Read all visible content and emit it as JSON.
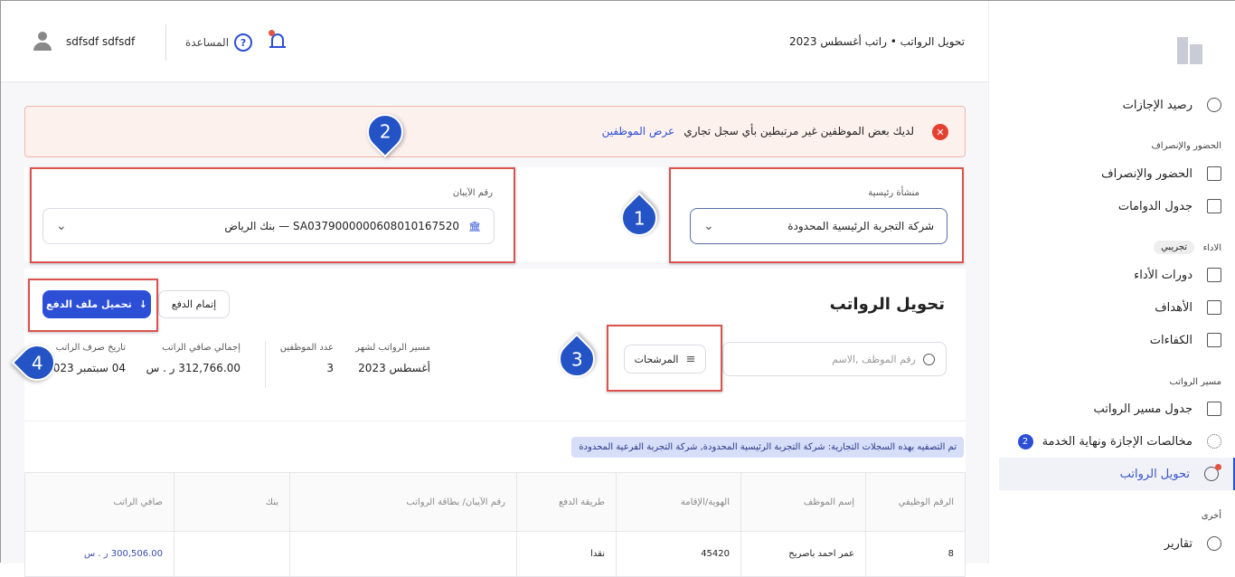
{
  "header": {
    "breadcrumb": "تحويل الرواتب • راتب أغسطس 2023",
    "user_name": "sdfsdf sdfsdf",
    "help_label": "المساعدة",
    "icons": [
      "user-icon",
      "help-icon",
      "bell-icon"
    ]
  },
  "alert": {
    "message": "لديك بعض الموظفين غير مرتبطين بأي سجل تجاري",
    "link": "عرض الموظفين"
  },
  "filters": {
    "entity_label": "منشأة رئيسية",
    "entity_value": "شركة التجربة الرئيسية المحدودة",
    "iban_label": "رقم الآيبان",
    "iban_value": "SA0379000000608010167520 — بنك الرياض"
  },
  "section": {
    "title": "تحويل الرواتب",
    "search_placeholder": "رقم الموظف ,الاسم",
    "filters_button": "المرشحات",
    "complete_payment": "إتمام الدفع",
    "download_file": "تحميل ملف الدفع"
  },
  "summary": [
    {
      "label": "مسير الرواتب لشهر",
      "value": "أغسطس 2023"
    },
    {
      "label": "عدد الموظفين",
      "value": "3"
    },
    {
      "label": "إجمالي صافي الراتب",
      "value": "312,766.00 ر . س"
    },
    {
      "label": "تاريخ صرف الراتب",
      "value": "04 سبتمبر 2023"
    }
  ],
  "filter_note": "تم التصفيه بهذه السجلات التجارية: شركة التجربة الرئيسية المحدودة, شركة التجربة الفرعية المحدودة",
  "table": {
    "headers": [
      "الرقم الوظيفي",
      "إسم الموظف",
      "الهوية/الإقامة",
      "طريقة الدفع",
      "رقم الآيبان/ بطاقة الرواتب",
      "بنك",
      "صافي الراتب"
    ],
    "rows": [
      [
        "8",
        "عمر احمد باصريح",
        "45420",
        "نقدا",
        "",
        "",
        "300,506.00 ر . س"
      ]
    ]
  },
  "sidebar": {
    "items_top": [
      {
        "label": "رصيد الإجازات",
        "icon": "percent-icon"
      }
    ],
    "sections": [
      {
        "title": "الحضور والإنصراف",
        "items": [
          {
            "label": "الحضور والإنصراف",
            "icon": "document-icon"
          },
          {
            "label": "جدول الدوامات",
            "icon": "table-icon"
          }
        ]
      },
      {
        "title": "الاداء",
        "badge": "تجريبي",
        "items": [
          {
            "label": "دورات الأداء",
            "icon": "document-icon"
          },
          {
            "label": "الأهداف",
            "icon": "document-icon"
          },
          {
            "label": "الكفاءات",
            "icon": "document-icon"
          }
        ]
      },
      {
        "title": "مسير الرواتب",
        "items": [
          {
            "label": "جدول مسير الرواتب",
            "icon": "document-icon"
          },
          {
            "label": "مخالصات الإجازة ونهاية الخدمة",
            "icon": "spinner-icon",
            "count": "2"
          },
          {
            "label": "تحويل الرواتب",
            "icon": "dollar-icon",
            "active": true
          }
        ]
      },
      {
        "title": "أخرى",
        "items": [
          {
            "label": "تقارير",
            "icon": "pie-chart-icon"
          }
        ]
      }
    ]
  },
  "annotations": [
    "1",
    "2",
    "3",
    "4"
  ],
  "colors": {
    "primary": "#2c4fd6",
    "annotation_red": "#d9534f",
    "alert_bg": "#fdf1ee"
  }
}
